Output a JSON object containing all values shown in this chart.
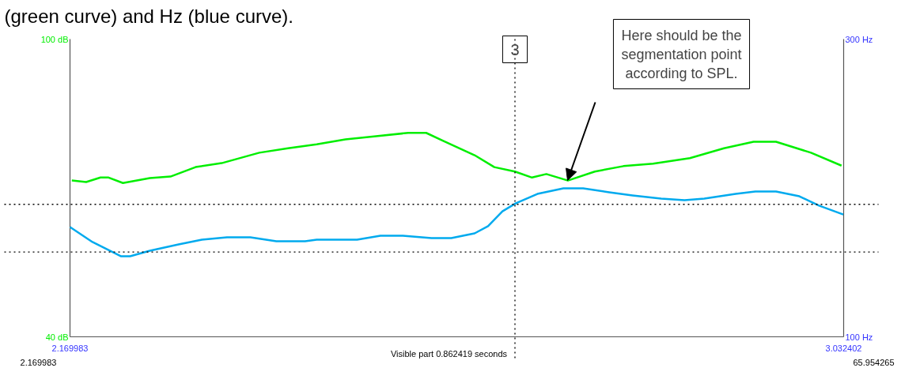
{
  "chart_data": {
    "type": "line",
    "x": [
      2.172,
      2.188,
      2.204,
      2.213,
      2.229,
      2.259,
      2.282,
      2.31,
      2.339,
      2.381,
      2.413,
      2.445,
      2.477,
      2.509,
      2.547,
      2.567,
      2.586,
      2.621,
      2.643,
      2.666,
      2.685,
      2.701,
      2.725,
      2.755,
      2.787,
      2.82,
      2.861,
      2.899,
      2.932,
      2.957,
      2.996,
      3.03
    ],
    "series": [
      {
        "color": "#00ee00",
        "values": [
          71.5,
          71.2,
          72.1,
          72.1,
          71.0,
          72.0,
          72.3,
          74.2,
          75.0,
          77.1,
          78.0,
          78.8,
          79.8,
          80.4,
          81.1,
          81.1,
          79.5,
          76.6,
          74.2,
          73.3,
          72.1,
          72.8,
          71.5,
          73.3,
          74.4,
          74.9,
          76.0,
          78.0,
          79.3,
          79.3,
          77.1,
          74.5
        ]
      },
      {
        "color": "#00aaee",
        "axis": "y2",
        "x": [
          2.17,
          2.195,
          2.227,
          2.237,
          2.259,
          2.291,
          2.317,
          2.345,
          2.371,
          2.4,
          2.432,
          2.445,
          2.49,
          2.516,
          2.541,
          2.573,
          2.595,
          2.621,
          2.636,
          2.652,
          2.667,
          2.691,
          2.72,
          2.742,
          2.771,
          2.797,
          2.829,
          2.855,
          2.877,
          2.912,
          2.934,
          2.957,
          2.983,
          3.005,
          3.032
        ],
        "values": [
          173.7,
          163.7,
          154.1,
          154.1,
          157.8,
          162.1,
          165.3,
          166.8,
          166.8,
          164.2,
          164.2,
          165.3,
          165.3,
          167.9,
          167.9,
          166.3,
          166.3,
          169.5,
          174.3,
          184.3,
          189.7,
          196.0,
          199.7,
          199.7,
          197.1,
          195.0,
          192.8,
          191.8,
          192.8,
          196.0,
          197.6,
          197.6,
          194.4,
          188.1,
          182.2
        ]
      }
    ],
    "xlim": [
      2.169983,
      3.032402
    ],
    "xticks": [
      {
        "value": 2.169983,
        "label": "2.169983"
      },
      {
        "value": 3.032402,
        "label": "3.032402"
      }
    ],
    "ylim": [
      40,
      100
    ],
    "yticks": [
      {
        "value": 40,
        "label": "40 dB"
      },
      {
        "value": 100,
        "label": "100 dB"
      }
    ],
    "y2lim": [
      100,
      300
    ],
    "y2ticks": [
      {
        "value": 100,
        "label": "100 Hz"
      },
      {
        "value": 300,
        "label": "300 Hz"
      }
    ],
    "ref_lines": [
      {
        "axis": "x",
        "value": 2.666,
        "label": "3",
        "line_style": "dotted",
        "color": "#000000"
      },
      {
        "axis": "y2",
        "value": 189,
        "line_style": "dotted",
        "color": "#000000"
      },
      {
        "axis": "y2",
        "value": 157,
        "line_style": "dotted",
        "color": "#000000"
      }
    ],
    "annotations": [
      "(green curve) and Hz (blue curve).",
      "Visible part 0.862419 seconds",
      "2.169983",
      "65.954265",
      "Here should be the\nsegmentation point\naccording to SPL."
    ],
    "grid": false,
    "line_style": "solid",
    "marker": "none"
  }
}
